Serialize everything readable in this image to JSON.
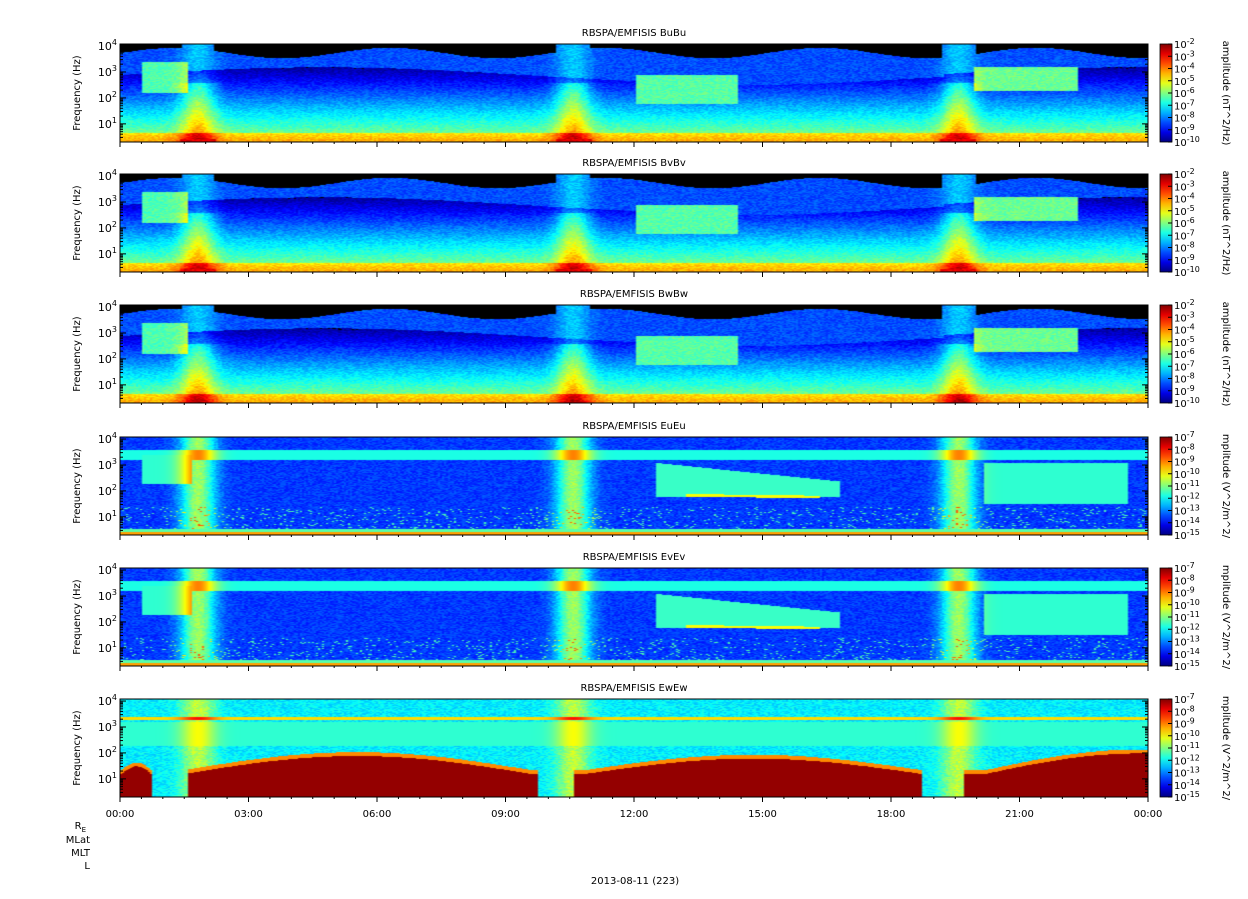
{
  "figure": {
    "date_label": "2013-08-11 (223)",
    "ephemeris_labels": [
      "R",
      "MLat",
      "MLT",
      "L"
    ],
    "ephemeris_subscript": "E"
  },
  "chart_data": [
    {
      "type": "heatmap",
      "title": "RBSPA/EMFISIS  BuBu",
      "ylabel": "Frequency (Hz)",
      "yscale": "log",
      "ylim": [
        2,
        12000
      ],
      "ytick_values": [
        10,
        100,
        1000,
        10000
      ],
      "ytick_exponents": [
        "1",
        "2",
        "3",
        "4"
      ],
      "colorbar_label": "amplitude (nT^2/Hz)",
      "colorbar_scale": "log",
      "colorbar_range_exp": [
        -10,
        -2
      ],
      "colorbar_tick_exponents": [
        "-2",
        "-3",
        "-4",
        "-5",
        "-6",
        "-7",
        "-8",
        "-9",
        "-10"
      ],
      "kind": "magnetic"
    },
    {
      "type": "heatmap",
      "title": "RBSPA/EMFISIS  BvBv",
      "ylabel": "Frequency (Hz)",
      "yscale": "log",
      "ylim": [
        2,
        12000
      ],
      "ytick_values": [
        10,
        100,
        1000,
        10000
      ],
      "ytick_exponents": [
        "1",
        "2",
        "3",
        "4"
      ],
      "colorbar_label": "amplitude (nT^2/Hz)",
      "colorbar_scale": "log",
      "colorbar_range_exp": [
        -10,
        -2
      ],
      "colorbar_tick_exponents": [
        "-2",
        "-3",
        "-4",
        "-5",
        "-6",
        "-7",
        "-8",
        "-9",
        "-10"
      ],
      "kind": "magnetic"
    },
    {
      "type": "heatmap",
      "title": "RBSPA/EMFISIS  BwBw",
      "ylabel": "Frequency (Hz)",
      "yscale": "log",
      "ylim": [
        2,
        12000
      ],
      "ytick_values": [
        10,
        100,
        1000,
        10000
      ],
      "ytick_exponents": [
        "1",
        "2",
        "3",
        "4"
      ],
      "colorbar_label": "amplitude (nT^2/Hz)",
      "colorbar_scale": "log",
      "colorbar_range_exp": [
        -10,
        -2
      ],
      "colorbar_tick_exponents": [
        "-2",
        "-3",
        "-4",
        "-5",
        "-6",
        "-7",
        "-8",
        "-9",
        "-10"
      ],
      "kind": "magnetic_w"
    },
    {
      "type": "heatmap",
      "title": "RBSPA/EMFISIS  EuEu",
      "ylabel": "Frequency (Hz)",
      "yscale": "log",
      "ylim": [
        2,
        12000
      ],
      "ytick_values": [
        10,
        100,
        1000,
        10000
      ],
      "ytick_exponents": [
        "1",
        "2",
        "3",
        "4"
      ],
      "colorbar_label": "mplitude (V^2/m^2/",
      "colorbar_scale": "log",
      "colorbar_range_exp": [
        -15,
        -7
      ],
      "colorbar_tick_exponents": [
        "-7",
        "-8",
        "-9",
        "-10",
        "-11",
        "-12",
        "-13",
        "-14",
        "-15"
      ],
      "kind": "electric"
    },
    {
      "type": "heatmap",
      "title": "RBSPA/EMFISIS  EvEv",
      "ylabel": "Frequency (Hz)",
      "yscale": "log",
      "ylim": [
        2,
        12000
      ],
      "ytick_values": [
        10,
        100,
        1000,
        10000
      ],
      "ytick_exponents": [
        "1",
        "2",
        "3",
        "4"
      ],
      "colorbar_label": "mplitude (V^2/m^2/",
      "colorbar_scale": "log",
      "colorbar_range_exp": [
        -15,
        -7
      ],
      "colorbar_tick_exponents": [
        "-7",
        "-8",
        "-9",
        "-10",
        "-11",
        "-12",
        "-13",
        "-14",
        "-15"
      ],
      "kind": "electric"
    },
    {
      "type": "heatmap",
      "title": "RBSPA/EMFISIS  EwEw",
      "ylabel": "Frequency (Hz)",
      "yscale": "log",
      "ylim": [
        2,
        12000
      ],
      "ytick_values": [
        10,
        100,
        1000,
        10000
      ],
      "ytick_exponents": [
        "1",
        "2",
        "3",
        "4"
      ],
      "colorbar_label": "mplitude (V^2/m^2/",
      "colorbar_scale": "log",
      "colorbar_range_exp": [
        -15,
        -7
      ],
      "colorbar_tick_exponents": [
        "-7",
        "-8",
        "-9",
        "-10",
        "-11",
        "-12",
        "-13",
        "-14",
        "-15"
      ],
      "kind": "electric_w"
    }
  ],
  "time_axis": {
    "range_hours": [
      0,
      24
    ],
    "tick_hours": [
      0,
      3,
      6,
      9,
      12,
      15,
      18,
      21,
      24
    ],
    "tick_labels": [
      "00:00",
      "03:00",
      "06:00",
      "09:00",
      "12:00",
      "15:00",
      "18:00",
      "21:00",
      "00:00"
    ]
  }
}
